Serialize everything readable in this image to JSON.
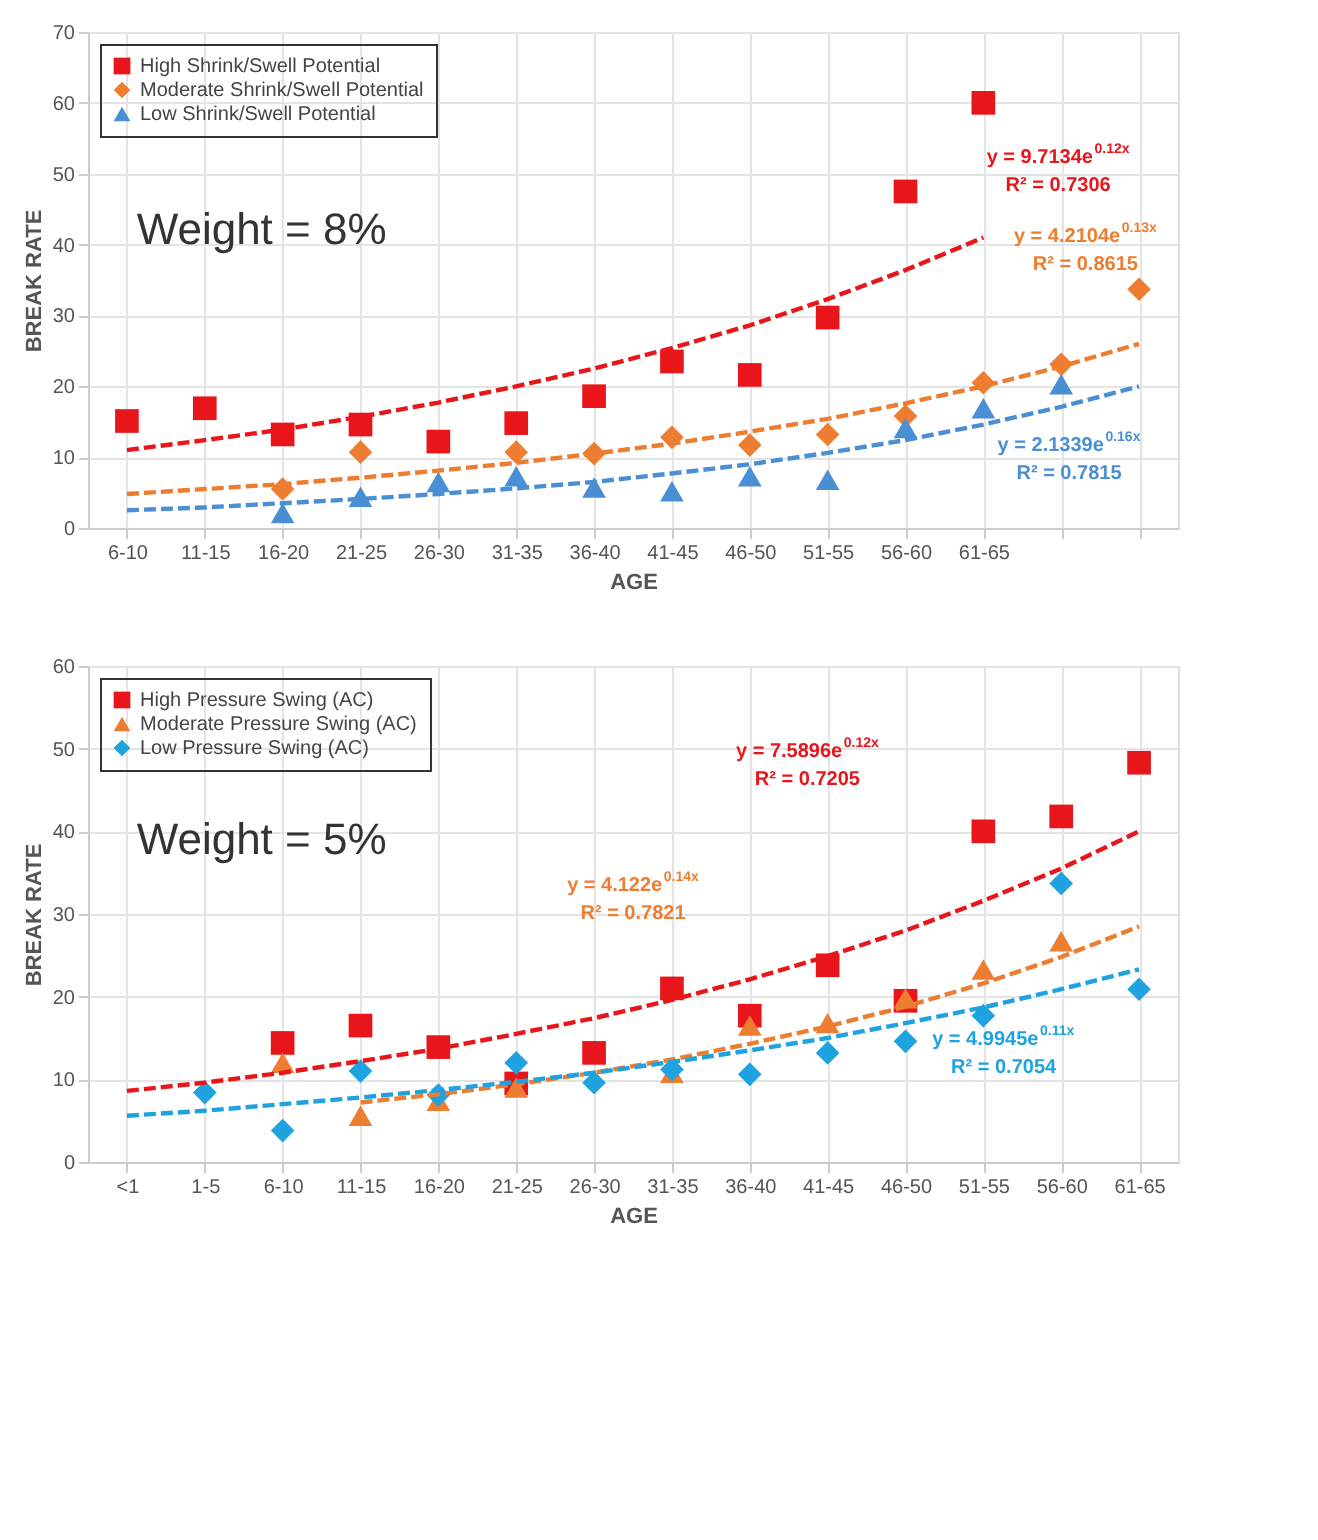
{
  "chart_data": [
    {
      "type": "scatter",
      "xlabel": "AGE",
      "ylabel": "BREAK RATE",
      "categories": [
        "6-10",
        "11-15",
        "16-20",
        "21-25",
        "26-30",
        "31-35",
        "36-40",
        "41-45",
        "46-50",
        "51-55",
        "56-60",
        "61-65",
        null,
        null
      ],
      "ylim": [
        0,
        70
      ],
      "yticks": [
        0,
        10,
        20,
        30,
        40,
        50,
        60,
        70
      ],
      "grid": true,
      "legend": "top left",
      "series": [
        {
          "name": "High Shrink/Swell Potential",
          "color": "#e8151b",
          "marker": "square",
          "values": [
            15.1,
            16.9,
            13.2,
            14.6,
            12.2,
            14.8,
            18.6,
            23.5,
            21.6,
            29.7,
            47.5,
            60,
            null,
            null
          ]
        },
        {
          "name": "Moderate Shrink/Swell Potential",
          "color": "#ed7d31",
          "marker": "diamond",
          "values": [
            null,
            null,
            5.5,
            10.7,
            null,
            10.7,
            10.5,
            12.8,
            11.7,
            13.2,
            15.8,
            20.5,
            23.1,
            33.7
          ]
        },
        {
          "name": "Low Shrink/Swell Potential",
          "color": "#4a8fd4",
          "marker": "triangle",
          "values": [
            null,
            null,
            2.1,
            4.4,
            6.5,
            7.3,
            5.7,
            5.2,
            7.3,
            6.8,
            14.1,
            16.9,
            20.3,
            null
          ]
        },
        {
          "type": "line",
          "color": "#e8151b",
          "line_style": "dashed",
          "marker": "none",
          "values": [
            11.0,
            12.4,
            13.9,
            15.7,
            17.7,
            20.0,
            22.5,
            25.4,
            28.6,
            32.3,
            36.4,
            41.0,
            null,
            null
          ]
        },
        {
          "type": "line",
          "color": "#ed7d31",
          "line_style": "dashed",
          "marker": "none",
          "values": [
            4.8,
            5.5,
            6.2,
            7.1,
            8.1,
            9.2,
            10.5,
            11.9,
            13.6,
            15.4,
            17.6,
            20.0,
            22.8,
            26.0
          ]
        },
        {
          "type": "line",
          "color": "#4a8fd4",
          "line_style": "dashed",
          "marker": "none",
          "values": [
            2.5,
            2.9,
            3.5,
            4.1,
            4.8,
            5.6,
            6.5,
            7.7,
            9.0,
            10.6,
            12.4,
            14.6,
            17.1,
            20.0
          ]
        }
      ],
      "annotations": [
        "Weight = 8%",
        "y = 9.7134e$^{0.12x}$\nR² = 0.7306",
        "y = 4.2104e$^{0.13x}$\nR² = 0.8615",
        "y = 2.1339e$^{0.16x}$\nR² = 0.7815"
      ]
    },
    {
      "type": "scatter",
      "xlabel": "AGE",
      "ylabel": "BREAK RATE",
      "categories": [
        "<1",
        "1-5",
        "6-10",
        "11-15",
        "16-20",
        "21-25",
        "26-30",
        "31-35",
        "36-40",
        "41-45",
        "46-50",
        "51-55",
        "56-60",
        "61-65"
      ],
      "ylim": [
        0,
        60
      ],
      "yticks": [
        0,
        10,
        20,
        30,
        40,
        50,
        60
      ],
      "grid": true,
      "legend": "top left",
      "series": [
        {
          "name": "High Pressure Swing (AC)",
          "color": "#e8151b",
          "marker": "square",
          "values": [
            null,
            null,
            14.4,
            16.5,
            13.9,
            9.5,
            13.2,
            21,
            17.7,
            23.8,
            19.5,
            40,
            41.8,
            48.3
          ]
        },
        {
          "name": "Moderate Pressure Swing (AC)",
          "color": "#ed7d31",
          "marker": "triangle",
          "values": [
            null,
            null,
            12,
            5.6,
            7.4,
            9,
            null,
            10.8,
            16.5,
            16.8,
            19.8,
            23.3,
            26.7,
            null
          ]
        },
        {
          "name": "Low Pressure Swing (AC)",
          "color": "#1fa2e0",
          "marker": "diamond",
          "values": [
            null,
            8.4,
            3.8,
            11,
            8.1,
            12,
            9.6,
            11.2,
            10.6,
            13.2,
            14.6,
            17.7,
            33.7,
            20.9
          ]
        },
        {
          "type": "line",
          "color": "#e8151b",
          "line_style": "dashed",
          "marker": "none",
          "values": [
            8.6,
            9.6,
            10.8,
            12.2,
            13.7,
            15.5,
            17.4,
            19.6,
            22.1,
            24.9,
            28.0,
            31.6,
            35.5,
            40.0
          ]
        },
        {
          "type": "line",
          "color": "#ed7d31",
          "line_style": "dashed",
          "marker": "none",
          "values": [
            null,
            null,
            null,
            7.2,
            8.2,
            9.4,
            10.8,
            12.4,
            14.3,
            16.4,
            18.8,
            21.6,
            24.8,
            28.5
          ]
        },
        {
          "type": "line",
          "color": "#1fa2e0",
          "line_style": "dashed",
          "marker": "none",
          "values": [
            5.6,
            6.2,
            7.0,
            7.8,
            8.7,
            9.7,
            10.8,
            12.1,
            13.5,
            15.0,
            16.8,
            18.7,
            20.9,
            23.3
          ]
        }
      ],
      "annotations": [
        "Weight = 5%",
        "y = 7.5896e$^{0.12x}$\nR² = 0.7205",
        "y = 4.122e$^{0.14x}$\nR² = 0.7821",
        "y = 4.9945e$^{0.11x}$\nR² = 0.7054"
      ]
    }
  ]
}
